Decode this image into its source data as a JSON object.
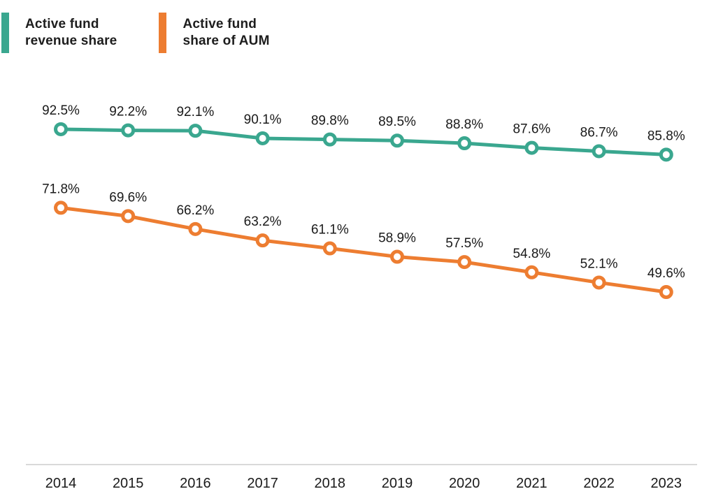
{
  "legend": {
    "items": [
      {
        "label": "Active fund\nrevenue share",
        "color": "#3aa78f"
      },
      {
        "label": "Active fund\nshare of AUM",
        "color": "#ed7d31"
      }
    ]
  },
  "chart_data": {
    "type": "line",
    "x": [
      "2014",
      "2015",
      "2016",
      "2017",
      "2018",
      "2019",
      "2020",
      "2021",
      "2022",
      "2023"
    ],
    "series": [
      {
        "name": "Active fund revenue share",
        "color": "#3aa78f",
        "values": [
          92.5,
          92.2,
          92.1,
          90.1,
          89.8,
          89.5,
          88.8,
          87.6,
          86.7,
          85.8
        ]
      },
      {
        "name": "Active fund share of AUM",
        "color": "#ed7d31",
        "values": [
          71.8,
          69.6,
          66.2,
          63.2,
          61.1,
          58.9,
          57.5,
          54.8,
          52.1,
          49.6
        ]
      }
    ],
    "value_suffix": "%",
    "data_labels": "above-points-one-decimal",
    "marker_style": "open-circle",
    "legend_position": "top-left",
    "grid": false,
    "y_axis_ticks": "none",
    "axis_line_color": "#b3b3b3",
    "text_color": "#1a1a1a"
  }
}
